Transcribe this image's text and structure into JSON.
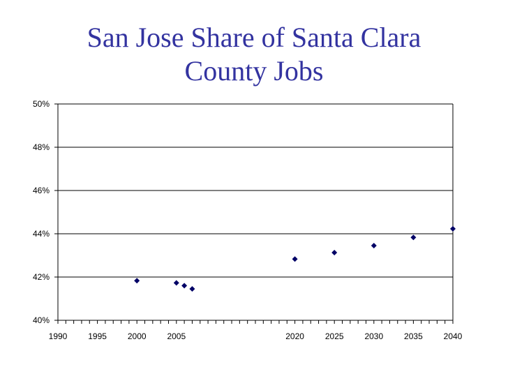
{
  "chart_data": {
    "type": "scatter",
    "title_lines": [
      "San Jose Share of Santa Clara",
      "County Jobs"
    ],
    "xlabel": "",
    "ylabel": "",
    "xlim": [
      1990,
      2040
    ],
    "ylim": [
      0.4,
      0.5
    ],
    "x_ticks": [
      1990,
      1995,
      2000,
      2005,
      2020,
      2025,
      2030,
      2035,
      2040
    ],
    "y_ticks": [
      "40%",
      "42%",
      "44%",
      "46%",
      "48%",
      "50%"
    ],
    "y_tick_values": [
      0.4,
      0.42,
      0.44,
      0.46,
      0.48,
      0.5
    ],
    "grid": "horizontal",
    "marker": "diamond",
    "marker_color": "#000066",
    "points": [
      {
        "x": 2000,
        "y": 0.4183
      },
      {
        "x": 2005,
        "y": 0.4173
      },
      {
        "x": 2006,
        "y": 0.416
      },
      {
        "x": 2007,
        "y": 0.4145
      },
      {
        "x": 2020,
        "y": 0.4283
      },
      {
        "x": 2025,
        "y": 0.4313
      },
      {
        "x": 2030,
        "y": 0.4345
      },
      {
        "x": 2035,
        "y": 0.4383
      },
      {
        "x": 2040,
        "y": 0.4423
      }
    ]
  }
}
